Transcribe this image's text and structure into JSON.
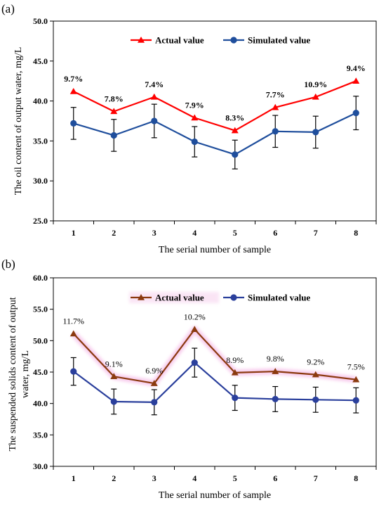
{
  "chart_data": [
    {
      "type": "line",
      "panel_label": "(a)",
      "categories": [
        "1",
        "2",
        "3",
        "4",
        "5",
        "6",
        "7",
        "8"
      ],
      "series": [
        {
          "name": "Actual value",
          "values": [
            41.2,
            38.7,
            40.5,
            37.9,
            36.3,
            39.2,
            40.5,
            42.5
          ],
          "color": "#ff0000",
          "marker": "triangle"
        },
        {
          "name": "Simulated value",
          "values": [
            37.2,
            35.7,
            37.5,
            34.9,
            33.3,
            36.2,
            36.1,
            38.5
          ],
          "color": "#1f4e9c",
          "marker": "circle",
          "error": [
            2.0,
            2.0,
            2.1,
            1.9,
            1.8,
            2.0,
            2.0,
            2.1
          ]
        }
      ],
      "annotations": [
        "9.7%",
        "7.8%",
        "7.4%",
        "7.9%",
        "8.3%",
        "7.7%",
        "10.9%",
        "9.4%"
      ],
      "xlabel": "The serial number of sample",
      "ylabel": "The oil content of output water, mg/L",
      "ylim": [
        25.0,
        50.0
      ],
      "yticks": [
        "25.0",
        "30.0",
        "35.0",
        "40.0",
        "45.0",
        "50.0"
      ],
      "legend": "top-center",
      "grid": false
    },
    {
      "type": "line",
      "panel_label": "(b)",
      "categories": [
        "1",
        "2",
        "3",
        "4",
        "5",
        "6",
        "7",
        "8"
      ],
      "series": [
        {
          "name": "Actual value",
          "values": [
            51.1,
            44.3,
            43.2,
            51.8,
            44.9,
            45.1,
            44.6,
            43.8
          ],
          "color": "#8b3a0f",
          "marker": "triangle"
        },
        {
          "name": "Simulated value",
          "values": [
            45.1,
            40.3,
            40.2,
            46.5,
            40.9,
            40.7,
            40.6,
            40.5
          ],
          "color": "#2a3f9c",
          "marker": "circle",
          "error": [
            2.2,
            2.0,
            2.0,
            2.3,
            2.0,
            2.0,
            2.0,
            2.0
          ]
        }
      ],
      "annotations": [
        "11.7%",
        "9.1%",
        "6.9%",
        "10.2%",
        "8.9%",
        "9.8%",
        "9.2%",
        "7.5%"
      ],
      "xlabel": "The serial number of sample",
      "ylabel": "The suspended solids content of output water, mg/L",
      "ylim": [
        30.0,
        60.0
      ],
      "yticks": [
        "30.0",
        "35.0",
        "40.0",
        "45.0",
        "50.0",
        "55.0",
        "60.0"
      ],
      "legend": "top-center",
      "grid": false
    }
  ]
}
